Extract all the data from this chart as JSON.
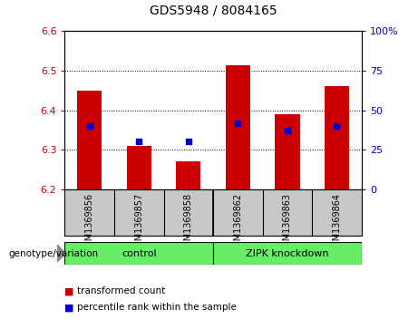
{
  "title": "GDS5948 / 8084165",
  "samples": [
    "GSM1369856",
    "GSM1369857",
    "GSM1369858",
    "GSM1369862",
    "GSM1369863",
    "GSM1369864"
  ],
  "bar_values": [
    6.45,
    6.31,
    6.27,
    6.515,
    6.39,
    6.46
  ],
  "bar_baseline": 6.2,
  "percentile_values": [
    40,
    30,
    30,
    42,
    37,
    40
  ],
  "bar_color": "#cc0000",
  "dot_color": "#0000cc",
  "ylim_left": [
    6.2,
    6.6
  ],
  "ylim_right": [
    0,
    100
  ],
  "yticks_left": [
    6.2,
    6.3,
    6.4,
    6.5,
    6.6
  ],
  "yticks_right": [
    0,
    25,
    50,
    75,
    100
  ],
  "ytick_labels_right": [
    "0",
    "25",
    "50",
    "75",
    "100%"
  ],
  "group_ranges": [
    [
      0,
      2,
      "control"
    ],
    [
      3,
      5,
      "ZIPK knockdown"
    ]
  ],
  "group_label_prefix": "genotype/variation",
  "legend_items": [
    {
      "label": "transformed count",
      "color": "#cc0000"
    },
    {
      "label": "percentile rank within the sample",
      "color": "#0000cc"
    }
  ],
  "bg_color": "#ffffff",
  "plot_bg_color": "#ffffff",
  "tick_label_color_left": "#cc0000",
  "tick_label_color_right": "#0000cc",
  "grid_color": "#000000",
  "bar_width": 0.5,
  "xticklabel_bg": "#c8c8c8",
  "group_bg": "#66ee66",
  "title_fontsize": 10,
  "tick_fontsize": 8,
  "label_fontsize": 7
}
